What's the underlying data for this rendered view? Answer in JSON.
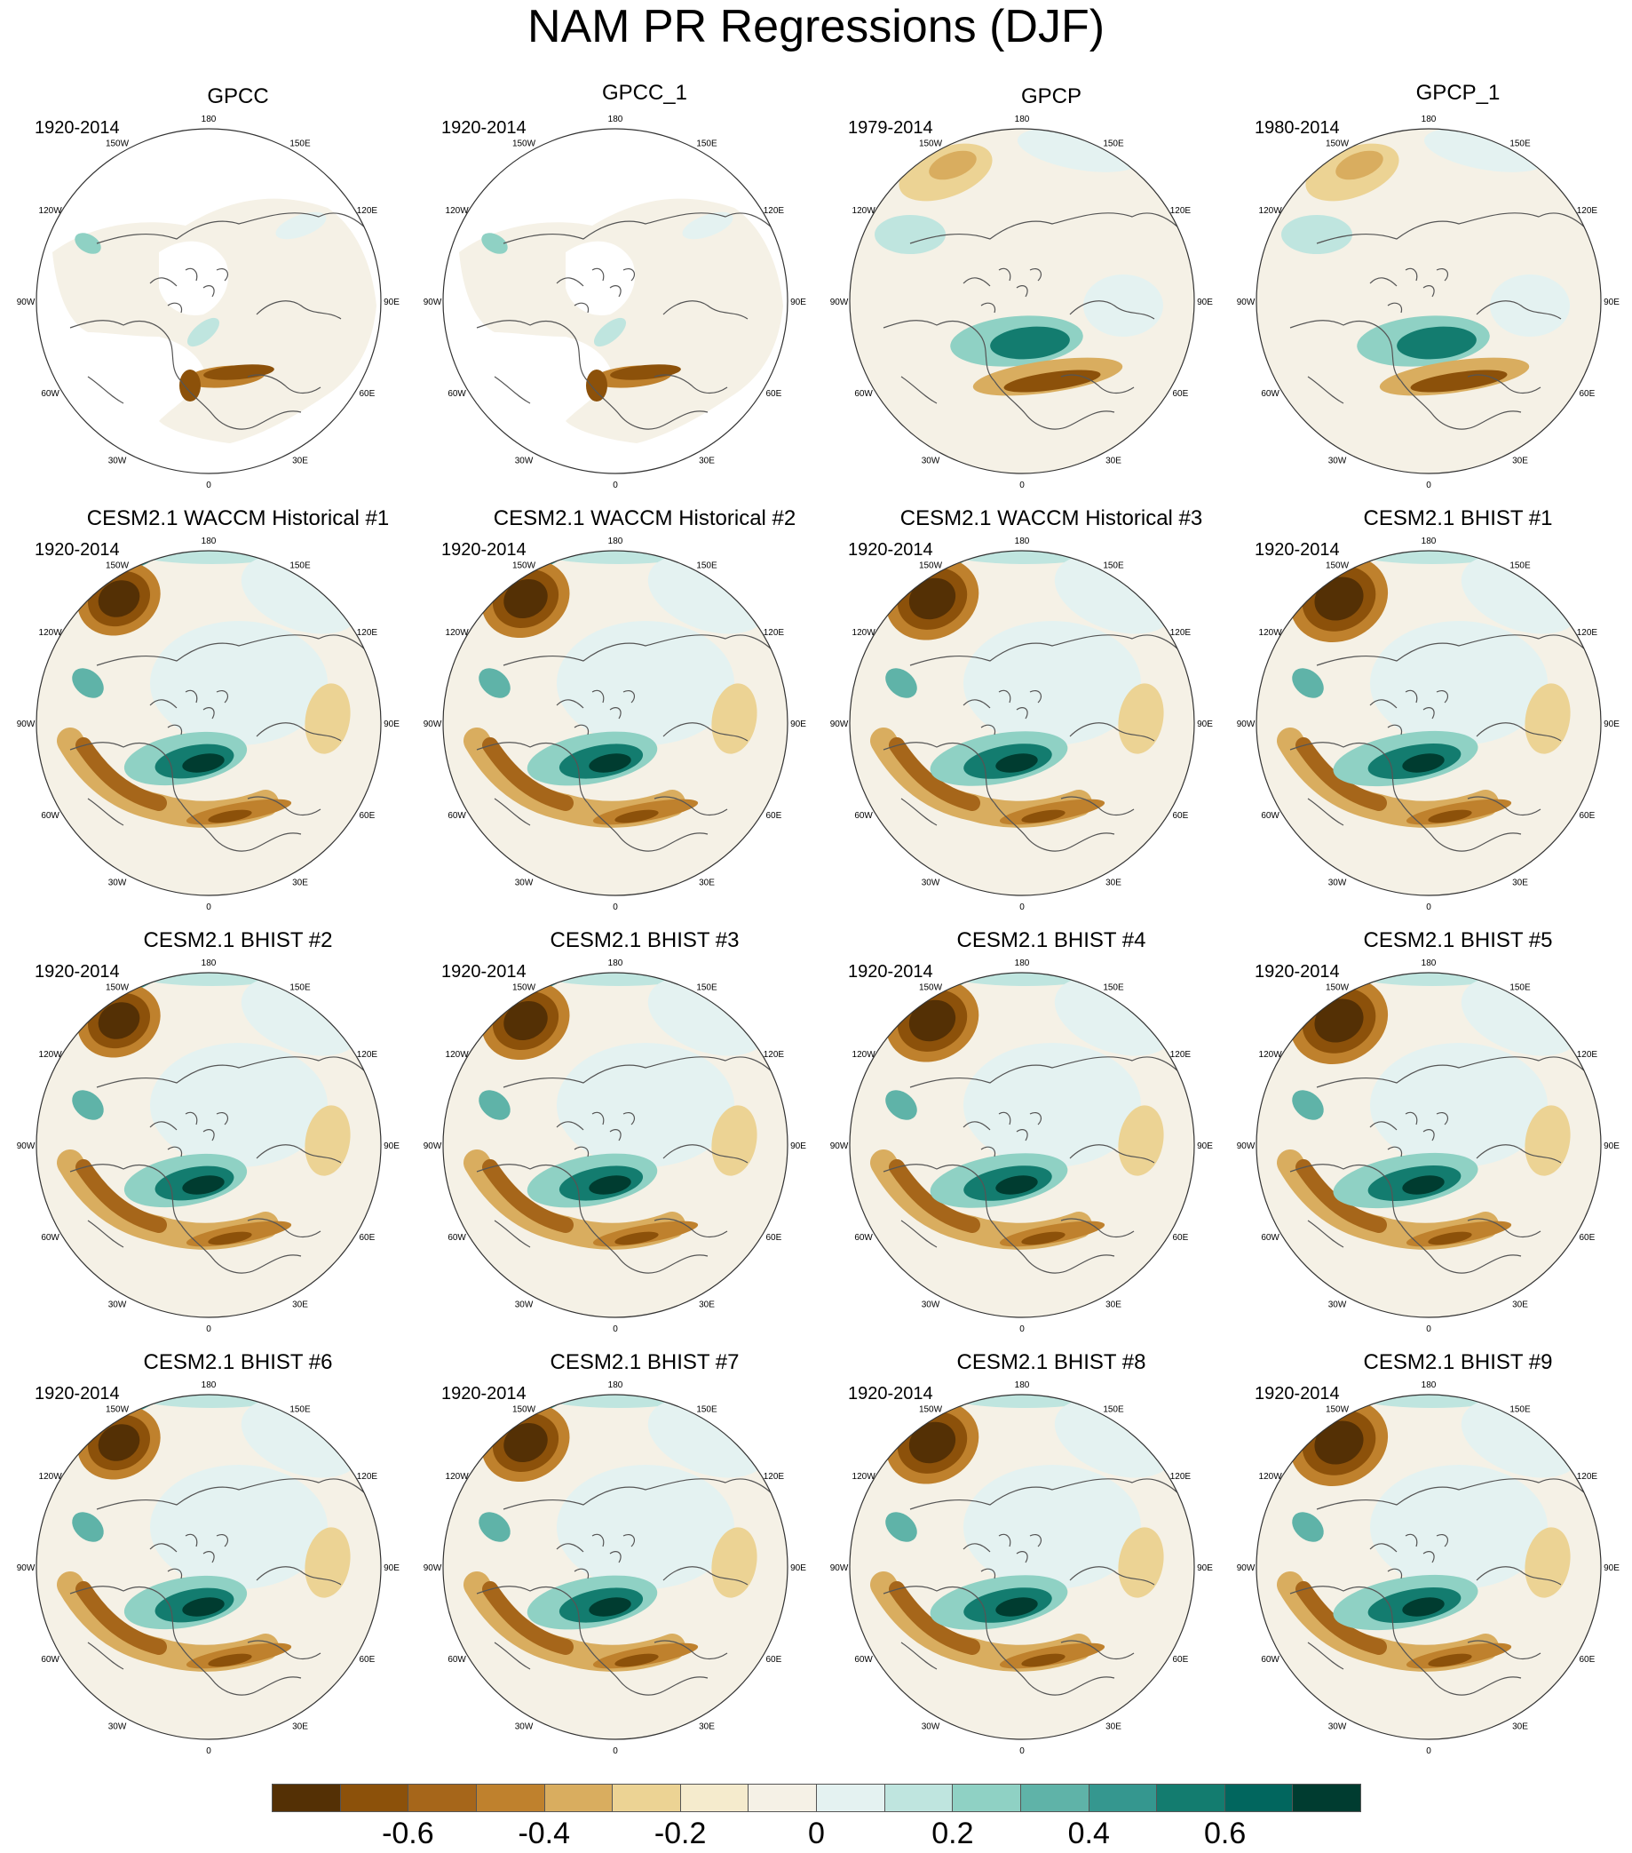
{
  "title": "NAM PR Regressions (DJF)",
  "longitude_labels": [
    "180",
    "150E",
    "120E",
    "90E",
    "60E",
    "30E",
    "0",
    "30W",
    "60W",
    "90W",
    "120W",
    "150W"
  ],
  "panels": [
    {
      "title": "GPCC",
      "period": "1920-2014",
      "kind": "obs_gpcc"
    },
    {
      "title": "GPCC_1",
      "period": "1920-2014",
      "kind": "obs_gpcc"
    },
    {
      "title": "GPCP",
      "period": "1979-2014",
      "kind": "obs_gpcp"
    },
    {
      "title": "GPCP_1",
      "period": "1980-2014",
      "kind": "obs_gpcp"
    },
    {
      "title": "CESM2.1 WACCM Historical #1",
      "period": "1920-2014",
      "kind": "model"
    },
    {
      "title": "CESM2.1 WACCM Historical #2",
      "period": "1920-2014",
      "kind": "model"
    },
    {
      "title": "CESM2.1 WACCM Historical #3",
      "period": "1920-2014",
      "kind": "model"
    },
    {
      "title": "CESM2.1 BHIST #1",
      "period": "1920-2014",
      "kind": "model"
    },
    {
      "title": "CESM2.1 BHIST #2",
      "period": "1920-2014",
      "kind": "model"
    },
    {
      "title": "CESM2.1 BHIST #3",
      "period": "1920-2014",
      "kind": "model"
    },
    {
      "title": "CESM2.1 BHIST #4",
      "period": "1920-2014",
      "kind": "model"
    },
    {
      "title": "CESM2.1 BHIST #5",
      "period": "1920-2014",
      "kind": "model"
    },
    {
      "title": "CESM2.1 BHIST #6",
      "period": "1920-2014",
      "kind": "model"
    },
    {
      "title": "CESM2.1 BHIST #7",
      "period": "1920-2014",
      "kind": "model"
    },
    {
      "title": "CESM2.1 BHIST #8",
      "period": "1920-2014",
      "kind": "model"
    },
    {
      "title": "CESM2.1 BHIST #9",
      "period": "1920-2014",
      "kind": "model"
    }
  ],
  "colorbar": {
    "colors": [
      "#543005",
      "#8c510a",
      "#a6661a",
      "#bf812d",
      "#d9ad5f",
      "#ecd394",
      "#f5ebcd",
      "#f5f1e6",
      "#e4f2f1",
      "#bfe5df",
      "#8fd1c4",
      "#5fb3a8",
      "#35978f",
      "#137c6f",
      "#01665e",
      "#003c30"
    ],
    "tick_labels": [
      "-0.6",
      "-0.4",
      "-0.2",
      "0",
      "0.2",
      "0.4",
      "0.6"
    ],
    "tick_values": [
      -0.6,
      -0.4,
      -0.2,
      0,
      0.2,
      0.4,
      0.6
    ]
  }
}
